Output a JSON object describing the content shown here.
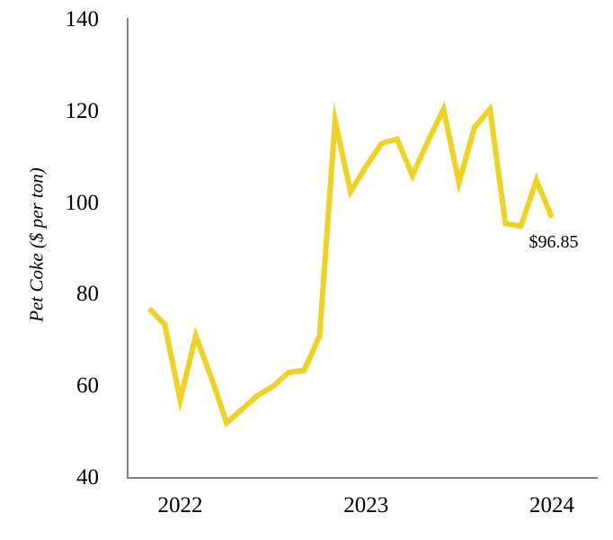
{
  "chart_data": {
    "type": "line",
    "title": "",
    "ylabel": "Pet Coke ($ per ton)",
    "xlabel": "",
    "ylim": [
      40,
      140
    ],
    "yticks": [
      140,
      120,
      100,
      80,
      60,
      40
    ],
    "xtick_labels": [
      "2022",
      "2023",
      "2024"
    ],
    "grid": false,
    "legend_position": "none",
    "axis_color": "#808080",
    "background_color": "#FFFFFF",
    "series": [
      {
        "name": "Pet Coke price",
        "color": "#EFD320",
        "x": [
          "Nov-2021",
          "Dec-2021",
          "Jan-2022",
          "Feb-2022",
          "Mar-2022",
          "Apr-2022",
          "May-2022",
          "Jun-2022",
          "Jul-2022",
          "Aug-2022",
          "Sep-2022",
          "Oct-2022",
          "Nov-2022",
          "Dec-2022",
          "Jan-2023",
          "Feb-2023",
          "Mar-2023",
          "Apr-2023",
          "May-2023",
          "Jun-2023",
          "Jul-2023",
          "Aug-2023",
          "Sep-2023",
          "Oct-2023",
          "Nov-2023",
          "Dec-2023",
          "Jan-2024"
        ],
        "values": [
          77,
          73.5,
          57,
          71,
          62,
          52,
          55,
          58,
          60,
          63,
          63.5,
          71,
          118,
          102.5,
          108,
          113,
          114,
          106,
          113.5,
          120.5,
          104.5,
          116.5,
          120.5,
          95.5,
          95,
          105,
          96.85
        ]
      }
    ],
    "annotation": {
      "text": "$96.85",
      "value": 96.85,
      "target": "last-point"
    }
  }
}
